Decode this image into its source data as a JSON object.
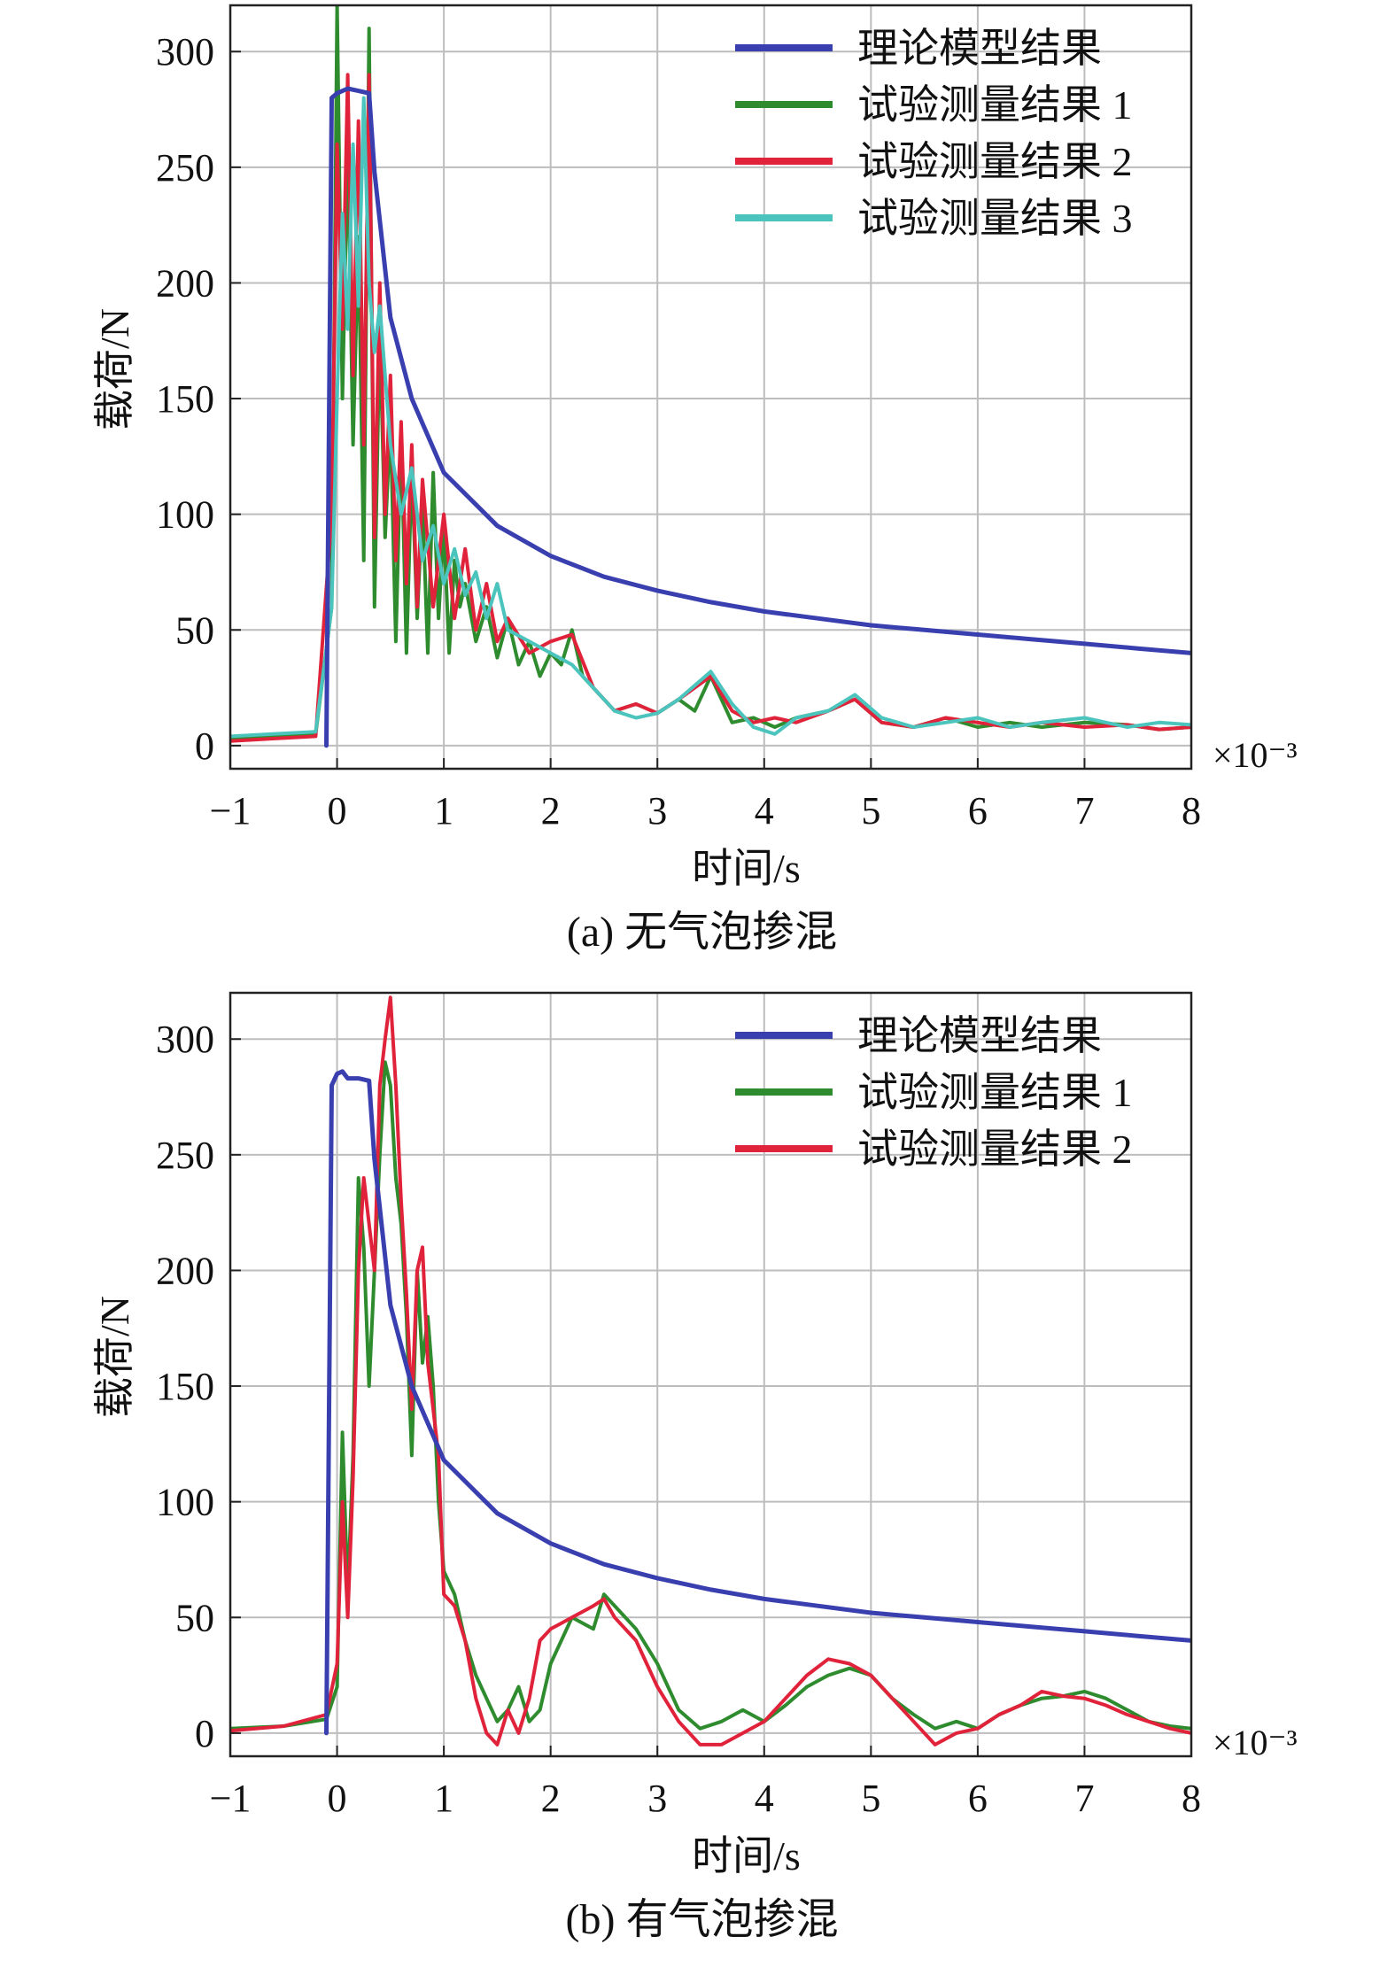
{
  "figure": {
    "multiplier_label": "×10⁻³"
  },
  "chart_data": [
    {
      "type": "line",
      "caption": "(a) 无气泡掺混",
      "xlabel": "时间/s",
      "ylabel": "载荷/N",
      "xlim": [
        -1,
        8
      ],
      "ylim": [
        -10,
        320
      ],
      "x_ticks": [
        "−1",
        "0",
        "1",
        "2",
        "3",
        "4",
        "5",
        "6",
        "7",
        "8"
      ],
      "y_ticks": [
        "0",
        "50",
        "100",
        "150",
        "200",
        "250",
        "300"
      ],
      "grid": true,
      "legend_position": "top-right",
      "colors": {
        "theory": "#3a3fb0",
        "exp1": "#2e8b2e",
        "exp2": "#e0233a",
        "exp3": "#4bc4bd"
      },
      "series": [
        {
          "name": "理论模型结果",
          "key": "theory",
          "x": [
            -1,
            -0.1,
            -0.05,
            0.0,
            0.05,
            0.1,
            0.2,
            0.3,
            0.35,
            0.5,
            0.7,
            1.0,
            1.5,
            2.0,
            2.5,
            3.0,
            3.5,
            4.0,
            4.5,
            5.0,
            5.5,
            6.0,
            6.5,
            7.0,
            7.5,
            8.0
          ],
          "y": [
            null,
            0,
            280,
            282,
            283,
            284,
            283,
            282,
            248,
            185,
            150,
            118,
            95,
            82,
            73,
            67,
            62,
            58,
            55,
            52,
            50,
            48,
            46,
            44,
            42,
            40
          ]
        },
        {
          "name": "试验测量结果 1",
          "key": "exp1",
          "x": [
            -1,
            -0.6,
            -0.2,
            -0.05,
            0.0,
            0.05,
            0.1,
            0.15,
            0.2,
            0.25,
            0.3,
            0.35,
            0.4,
            0.45,
            0.5,
            0.55,
            0.6,
            0.65,
            0.7,
            0.75,
            0.8,
            0.85,
            0.9,
            0.95,
            1.0,
            1.05,
            1.1,
            1.15,
            1.2,
            1.3,
            1.4,
            1.5,
            1.6,
            1.7,
            1.8,
            1.9,
            2.0,
            2.1,
            2.2,
            2.3,
            2.4,
            2.6,
            2.8,
            3.0,
            3.2,
            3.35,
            3.5,
            3.7,
            3.9,
            4.1,
            4.3,
            4.6,
            4.85,
            5.1,
            5.4,
            5.7,
            6.0,
            6.3,
            6.6,
            7.0,
            7.4,
            7.7,
            8.0
          ],
          "y": [
            3,
            4,
            5,
            60,
            320,
            150,
            260,
            130,
            220,
            80,
            310,
            60,
            180,
            90,
            140,
            45,
            135,
            40,
            120,
            55,
            105,
            40,
            118,
            55,
            95,
            40,
            80,
            60,
            70,
            45,
            60,
            38,
            55,
            35,
            45,
            30,
            40,
            35,
            50,
            30,
            25,
            15,
            18,
            14,
            20,
            15,
            30,
            10,
            12,
            8,
            12,
            15,
            20,
            10,
            8,
            12,
            8,
            10,
            8,
            10,
            9,
            7,
            8
          ]
        },
        {
          "name": "试验测量结果 2",
          "key": "exp2",
          "x": [
            -1,
            -0.6,
            -0.2,
            -0.05,
            0.0,
            0.05,
            0.1,
            0.15,
            0.2,
            0.25,
            0.3,
            0.35,
            0.4,
            0.45,
            0.5,
            0.55,
            0.6,
            0.65,
            0.7,
            0.75,
            0.8,
            0.9,
            1.0,
            1.1,
            1.2,
            1.3,
            1.4,
            1.5,
            1.6,
            1.8,
            2.0,
            2.2,
            2.4,
            2.6,
            2.8,
            3.0,
            3.2,
            3.5,
            3.7,
            3.9,
            4.1,
            4.3,
            4.6,
            4.85,
            5.1,
            5.4,
            5.7,
            6.0,
            6.3,
            6.6,
            7.0,
            7.4,
            7.7,
            8.0
          ],
          "y": [
            2,
            3,
            4,
            100,
            260,
            180,
            290,
            160,
            270,
            130,
            290,
            90,
            200,
            100,
            160,
            80,
            140,
            70,
            130,
            60,
            115,
            60,
            100,
            55,
            85,
            50,
            70,
            45,
            55,
            40,
            45,
            48,
            25,
            15,
            18,
            14,
            20,
            30,
            15,
            10,
            12,
            10,
            15,
            20,
            10,
            8,
            12,
            10,
            8,
            10,
            8,
            9,
            7,
            8
          ]
        },
        {
          "name": "试验测量结果 3",
          "key": "exp3",
          "x": [
            -1,
            -0.6,
            -0.2,
            -0.05,
            0.0,
            0.05,
            0.1,
            0.15,
            0.2,
            0.25,
            0.3,
            0.35,
            0.4,
            0.5,
            0.6,
            0.7,
            0.8,
            0.9,
            1.0,
            1.1,
            1.2,
            1.3,
            1.4,
            1.5,
            1.6,
            1.8,
            2.0,
            2.2,
            2.4,
            2.6,
            2.8,
            3.0,
            3.2,
            3.5,
            3.7,
            3.9,
            4.1,
            4.3,
            4.6,
            4.85,
            5.1,
            5.4,
            5.7,
            6.0,
            6.3,
            6.6,
            7.0,
            7.4,
            7.7,
            8.0
          ],
          "y": [
            4,
            5,
            6,
            60,
            150,
            230,
            180,
            260,
            190,
            280,
            200,
            170,
            190,
            130,
            100,
            120,
            80,
            95,
            70,
            85,
            65,
            75,
            55,
            70,
            50,
            45,
            40,
            35,
            25,
            15,
            12,
            14,
            20,
            32,
            18,
            8,
            5,
            12,
            15,
            22,
            12,
            8,
            10,
            12,
            8,
            10,
            12,
            8,
            10,
            9
          ]
        }
      ]
    },
    {
      "type": "line",
      "caption": "(b) 有气泡掺混",
      "xlabel": "时间/s",
      "ylabel": "载荷/N",
      "xlim": [
        -1,
        8
      ],
      "ylim": [
        -10,
        320
      ],
      "x_ticks": [
        "−1",
        "0",
        "1",
        "2",
        "3",
        "4",
        "5",
        "6",
        "7",
        "8"
      ],
      "y_ticks": [
        "0",
        "50",
        "100",
        "150",
        "200",
        "250",
        "300"
      ],
      "grid": true,
      "legend_position": "top-right",
      "colors": {
        "theory": "#3a3fb0",
        "exp1": "#2e8b2e",
        "exp2": "#e0233a"
      },
      "series": [
        {
          "name": "理论模型结果",
          "key": "theory",
          "x": [
            -1,
            -0.1,
            -0.05,
            0.0,
            0.05,
            0.1,
            0.2,
            0.3,
            0.35,
            0.5,
            0.7,
            1.0,
            1.5,
            2.0,
            2.5,
            3.0,
            3.5,
            4.0,
            4.5,
            5.0,
            5.5,
            6.0,
            6.5,
            7.0,
            7.5,
            8.0
          ],
          "y": [
            null,
            0,
            280,
            285,
            286,
            283,
            283,
            282,
            248,
            185,
            150,
            118,
            95,
            82,
            73,
            67,
            62,
            58,
            55,
            52,
            50,
            48,
            46,
            44,
            42,
            40
          ]
        },
        {
          "name": "试验测量结果 1",
          "key": "exp1",
          "x": [
            -1,
            -0.5,
            -0.1,
            0.0,
            0.05,
            0.1,
            0.15,
            0.2,
            0.25,
            0.3,
            0.35,
            0.4,
            0.45,
            0.5,
            0.55,
            0.6,
            0.65,
            0.7,
            0.75,
            0.8,
            0.85,
            0.9,
            0.95,
            1.0,
            1.1,
            1.2,
            1.3,
            1.4,
            1.5,
            1.6,
            1.7,
            1.8,
            1.9,
            2.0,
            2.2,
            2.4,
            2.5,
            2.6,
            2.8,
            3.0,
            3.2,
            3.4,
            3.6,
            3.8,
            4.0,
            4.2,
            4.4,
            4.6,
            4.8,
            5.0,
            5.2,
            5.4,
            5.6,
            5.8,
            6.0,
            6.2,
            6.4,
            6.6,
            6.8,
            7.0,
            7.2,
            7.4,
            7.6,
            7.8,
            8.0
          ],
          "y": [
            2,
            3,
            6,
            20,
            130,
            60,
            120,
            240,
            210,
            150,
            200,
            250,
            290,
            280,
            240,
            220,
            180,
            120,
            200,
            160,
            180,
            150,
            100,
            70,
            60,
            40,
            25,
            15,
            5,
            10,
            20,
            5,
            10,
            30,
            50,
            45,
            60,
            55,
            45,
            30,
            10,
            2,
            5,
            10,
            5,
            12,
            20,
            25,
            28,
            25,
            15,
            8,
            2,
            5,
            2,
            8,
            12,
            15,
            16,
            18,
            15,
            10,
            5,
            3,
            2
          ]
        },
        {
          "name": "试验测量结果 2",
          "key": "exp2",
          "x": [
            -1,
            -0.5,
            -0.1,
            0.0,
            0.05,
            0.1,
            0.15,
            0.2,
            0.25,
            0.3,
            0.35,
            0.4,
            0.45,
            0.5,
            0.55,
            0.6,
            0.65,
            0.7,
            0.75,
            0.8,
            0.85,
            0.9,
            0.95,
            1.0,
            1.1,
            1.2,
            1.3,
            1.4,
            1.5,
            1.6,
            1.7,
            1.8,
            1.9,
            2.0,
            2.2,
            2.4,
            2.5,
            2.6,
            2.8,
            3.0,
            3.2,
            3.4,
            3.6,
            3.8,
            4.0,
            4.2,
            4.4,
            4.6,
            4.8,
            5.0,
            5.2,
            5.4,
            5.6,
            5.8,
            6.0,
            6.2,
            6.4,
            6.6,
            6.8,
            7.0,
            7.2,
            7.4,
            7.6,
            7.8,
            8.0
          ],
          "y": [
            1,
            3,
            8,
            30,
            100,
            50,
            110,
            200,
            240,
            220,
            200,
            280,
            300,
            318,
            280,
            230,
            190,
            140,
            200,
            210,
            160,
            140,
            120,
            60,
            55,
            40,
            15,
            0,
            -5,
            10,
            0,
            15,
            40,
            45,
            50,
            55,
            58,
            50,
            40,
            20,
            5,
            -5,
            -5,
            0,
            5,
            15,
            25,
            32,
            30,
            25,
            15,
            5,
            -5,
            0,
            2,
            8,
            12,
            18,
            16,
            15,
            12,
            8,
            5,
            2,
            0
          ]
        }
      ]
    }
  ]
}
